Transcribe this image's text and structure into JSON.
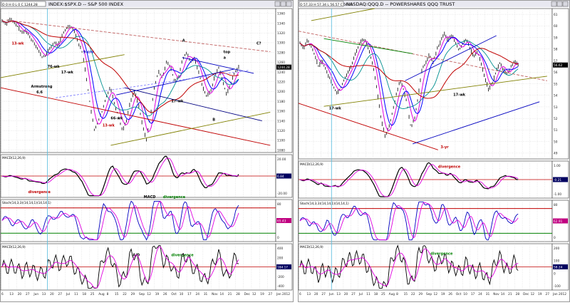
{
  "charts": [
    {
      "title": "INDEX:$SPX.D -- S&P 500 INDEX",
      "ohlc": "O 0 H 0 L 0 C 1244.28",
      "price_axis": [
        "1360",
        "1340",
        "1320",
        "1300",
        "1280",
        "1260",
        "1240",
        "1220",
        "1200",
        "1180",
        "1160",
        "1140",
        "1120",
        "1100",
        "1080"
      ],
      "tag": "1244.28",
      "date_axis": [
        "6",
        "13",
        "20",
        "27",
        "Jun",
        "13",
        "20",
        "27",
        "Jul",
        "11",
        "18",
        "25",
        "Aug",
        "8",
        "15",
        "22",
        "29",
        "Sep",
        "12",
        "19",
        "26",
        "Oct",
        "10",
        "17",
        "24",
        "31",
        "Nov",
        "14",
        "21",
        "28",
        "Dec",
        "12",
        "19",
        "27",
        "Jan 2012"
      ],
      "panels": [
        {
          "title": "MACD(12,26,9)",
          "axis": [
            "20.00",
            "0",
            "-20.00"
          ],
          "tag": "6.84"
        },
        {
          "title": "Stoch(14,3,3)(14,14,1)(14,14,1)",
          "axis": [
            "80",
            "40",
            "0"
          ],
          "tag": "65.43"
        },
        {
          "title": "MACD(12,26,9)",
          "axis": [
            "400",
            "200",
            "0",
            "-200",
            "-400"
          ],
          "tag": "184.17"
        }
      ],
      "annotations": [
        "13-wk",
        "17-wk",
        "13-wk",
        "66-wk",
        "17-wk",
        "76-wk",
        "Armstrong",
        "6.6",
        "9-cro",
        "A",
        "B",
        "C?",
        "top",
        "a",
        "divergence",
        "MACD",
        "divergence",
        "A/D",
        "divergence"
      ]
    },
    {
      "title": "NASDAQ:QQQ.D -- POWERSHARES QQQ TRUST",
      "ohlc": "O 57.33 H 57.34 L 56.57 C 56.62",
      "price_axis": [
        "61",
        "60",
        "59",
        "58",
        "57",
        "56",
        "55",
        "54",
        "53",
        "52",
        "51",
        "50",
        "49"
      ],
      "tag": "56.62",
      "date_axis": [
        "6",
        "13",
        "20",
        "27",
        "Jun",
        "13",
        "20",
        "27",
        "Jul",
        "11",
        "18",
        "25",
        "Aug",
        "8",
        "15",
        "22",
        "29",
        "Sep",
        "12",
        "19",
        "26",
        "Oct",
        "10",
        "17",
        "24",
        "31",
        "Nov",
        "14",
        "21",
        "28",
        "Dec",
        "12",
        "19",
        "27",
        "Jan 2012"
      ],
      "panels": [
        {
          "title": "MACD(12,26,9)",
          "axis": [
            "1.00",
            "0",
            "-1.00"
          ],
          "tag": "-0.21"
        },
        {
          "title": "Stoch(14,3,3)(14,14,1)(14,14,1)",
          "axis": [
            "80",
            "40",
            "0"
          ],
          "tag": "62.91"
        },
        {
          "title": "MACD(12,26,9)",
          "axis": [
            "200",
            "100",
            "0",
            "-100"
          ],
          "tag": "58.24"
        }
      ],
      "annotations": [
        "17-wk",
        "17-wk",
        "3-yr",
        "divergence",
        "divergence"
      ]
    }
  ],
  "chart_data": [
    {
      "type": "line",
      "title": "INDEX:$SPX.D -- S&P 500 INDEX",
      "ylim": [
        1075,
        1370
      ],
      "x_start": "2011-05-01",
      "series": [
        {
          "name": "",
          "values": [
            1345,
            1338,
            1350,
            1340,
            1332,
            1320,
            1325,
            1310,
            1300,
            1285,
            1270,
            1275,
            1290,
            1300,
            1295,
            1315,
            1330,
            1335,
            1325,
            1300,
            1280,
            1230,
            1170,
            1120,
            1140,
            1160,
            1190,
            1210,
            1175,
            1150,
            1120,
            1140,
            1180,
            1200,
            1175,
            1130,
            1100,
            1150,
            1210,
            1240,
            1230,
            1260,
            1250,
            1220,
            1230,
            1265,
            1280,
            1260,
            1270,
            1240,
            1210,
            1190,
            1200,
            1230,
            1250,
            1220,
            1195,
            1215,
            1240,
            1250
          ]
        }
      ]
    },
    {
      "type": "line",
      "title": "NASDAQ:QQQ.D -- POWERSHARES QQQ TRUST",
      "ylim": [
        48.5,
        61.5
      ],
      "x_start": "2011-05-01",
      "series": [
        {
          "name": "",
          "values": [
            58.5,
            58.0,
            58.8,
            58.2,
            57.5,
            56.5,
            57.0,
            56.2,
            55.5,
            54.8,
            54.2,
            54.6,
            55.4,
            56.0,
            56.6,
            57.6,
            58.4,
            58.9,
            58.5,
            57.5,
            56.2,
            54.0,
            51.8,
            50.5,
            51.2,
            52.5,
            54.0,
            55.3,
            54.5,
            53.2,
            51.2,
            52.0,
            54.0,
            56.2,
            56.8,
            57.5,
            56.8,
            57.9,
            58.6,
            59.4,
            58.7,
            59.2,
            58.6,
            57.9,
            58.4,
            58.9,
            58.1,
            57.3,
            57.8,
            56.8,
            55.5,
            54.5,
            55.0,
            56.0,
            56.8,
            56.2,
            55.8,
            56.4,
            57.0,
            56.62
          ]
        }
      ]
    }
  ]
}
